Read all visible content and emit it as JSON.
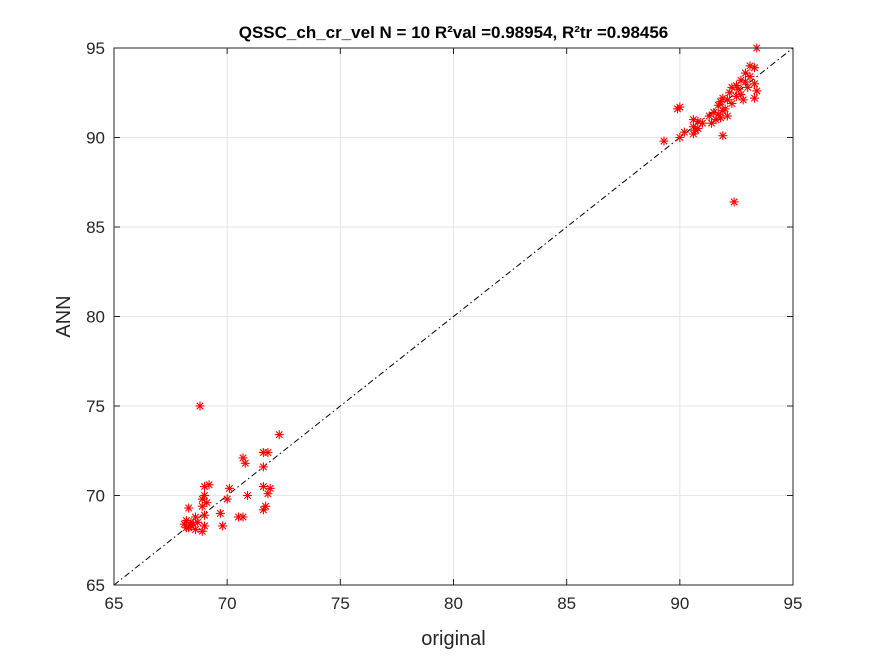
{
  "chart_data": {
    "type": "scatter",
    "title": "QSSC_ch_cr_vel  N = 10 R²val =0.98954, R²tr =0.98456",
    "xlabel": "original",
    "ylabel": "ANN",
    "xlim": [
      65,
      95
    ],
    "ylim": [
      65,
      95
    ],
    "xticks": [
      65,
      70,
      75,
      80,
      85,
      90,
      95
    ],
    "yticks": [
      65,
      70,
      75,
      80,
      85,
      90,
      95
    ],
    "grid": true,
    "colors": {
      "points": "#ff0000",
      "reference_line": "#000000",
      "grid": "#e6e6e6",
      "axes": "#262626"
    },
    "marker": "asterisk",
    "reference_line": {
      "style": "dash-dot",
      "from": [
        65,
        65
      ],
      "to": [
        95,
        95
      ]
    },
    "points": [
      [
        68.8,
        75.0
      ],
      [
        72.3,
        73.4
      ],
      [
        71.8,
        72.4
      ],
      [
        71.6,
        72.4
      ],
      [
        70.7,
        72.1
      ],
      [
        70.8,
        71.8
      ],
      [
        71.6,
        71.6
      ],
      [
        69.2,
        70.6
      ],
      [
        69.0,
        70.5
      ],
      [
        71.6,
        70.5
      ],
      [
        70.1,
        70.4
      ],
      [
        71.9,
        70.4
      ],
      [
        71.8,
        70.1
      ],
      [
        70.9,
        70.0
      ],
      [
        69.0,
        70.0
      ],
      [
        68.9,
        69.8
      ],
      [
        70.0,
        69.8
      ],
      [
        69.1,
        69.6
      ],
      [
        68.9,
        69.4
      ],
      [
        71.7,
        69.4
      ],
      [
        71.6,
        69.2
      ],
      [
        68.3,
        69.3
      ],
      [
        69.7,
        69.0
      ],
      [
        69.0,
        68.9
      ],
      [
        68.6,
        68.8
      ],
      [
        70.5,
        68.8
      ],
      [
        70.7,
        68.8
      ],
      [
        68.2,
        68.6
      ],
      [
        68.4,
        68.5
      ],
      [
        68.1,
        68.4
      ],
      [
        68.5,
        68.4
      ],
      [
        68.4,
        68.3
      ],
      [
        68.3,
        68.2
      ],
      [
        69.0,
        68.3
      ],
      [
        69.8,
        68.3
      ],
      [
        68.6,
        68.1
      ],
      [
        68.9,
        68.0
      ],
      [
        68.7,
        68.5
      ],
      [
        68.2,
        68.2
      ],
      [
        93.4,
        95.0
      ],
      [
        93.1,
        94.0
      ],
      [
        93.3,
        93.9
      ],
      [
        92.9,
        93.6
      ],
      [
        93.1,
        93.4
      ],
      [
        92.7,
        93.2
      ],
      [
        92.9,
        93.1
      ],
      [
        93.3,
        93.0
      ],
      [
        92.5,
        92.9
      ],
      [
        93.0,
        92.8
      ],
      [
        92.3,
        92.8
      ],
      [
        92.6,
        92.7
      ],
      [
        93.4,
        92.6
      ],
      [
        92.2,
        92.5
      ],
      [
        92.7,
        92.4
      ],
      [
        92.5,
        92.3
      ],
      [
        91.9,
        92.2
      ],
      [
        93.3,
        92.2
      ],
      [
        92.8,
        92.1
      ],
      [
        92.1,
        92.1
      ],
      [
        91.8,
        92.0
      ],
      [
        92.3,
        91.9
      ],
      [
        91.7,
        91.8
      ],
      [
        90.0,
        91.7
      ],
      [
        89.9,
        91.6
      ],
      [
        92.0,
        91.6
      ],
      [
        91.9,
        91.5
      ],
      [
        91.5,
        91.4
      ],
      [
        91.7,
        91.3
      ],
      [
        92.1,
        91.2
      ],
      [
        91.3,
        91.2
      ],
      [
        91.8,
        91.1
      ],
      [
        91.6,
        91.0
      ],
      [
        90.6,
        91.0
      ],
      [
        90.8,
        90.9
      ],
      [
        91.4,
        90.8
      ],
      [
        91.0,
        90.8
      ],
      [
        90.6,
        90.6
      ],
      [
        90.8,
        90.5
      ],
      [
        90.7,
        90.4
      ],
      [
        90.2,
        90.3
      ],
      [
        90.6,
        90.2
      ],
      [
        91.9,
        90.1
      ],
      [
        90.0,
        90.0
      ],
      [
        89.3,
        89.8
      ],
      [
        92.4,
        86.4
      ]
    ]
  }
}
